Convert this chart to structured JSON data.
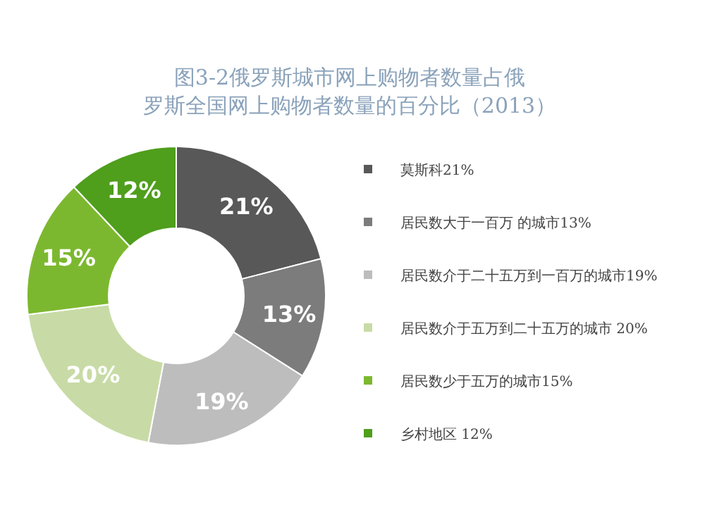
{
  "chart_data": {
    "type": "donut",
    "title": "图3-2俄罗斯城市网上购物者数量占俄罗斯全国网上购物者数量的百分比（2013）",
    "categories": [
      "莫斯科21%",
      "居民数大于一百万 的城市13%",
      "居民数介于二十五万到一百万的城市19%",
      "居民数介于五万到二十五万的城市 20%",
      "居民数少于五万的城市15%",
      "乡村地区 12%"
    ],
    "values": [
      21,
      13,
      19,
      20,
      15,
      12
    ],
    "colors": [
      "#585858",
      "#7c7c7c",
      "#bdbdbd",
      "#c8dba6",
      "#7cb82f",
      "#4f9e1c"
    ],
    "value_labels": [
      "21%",
      "13%",
      "19%",
      "20%",
      "15%",
      "12%"
    ],
    "legend": "right"
  }
}
